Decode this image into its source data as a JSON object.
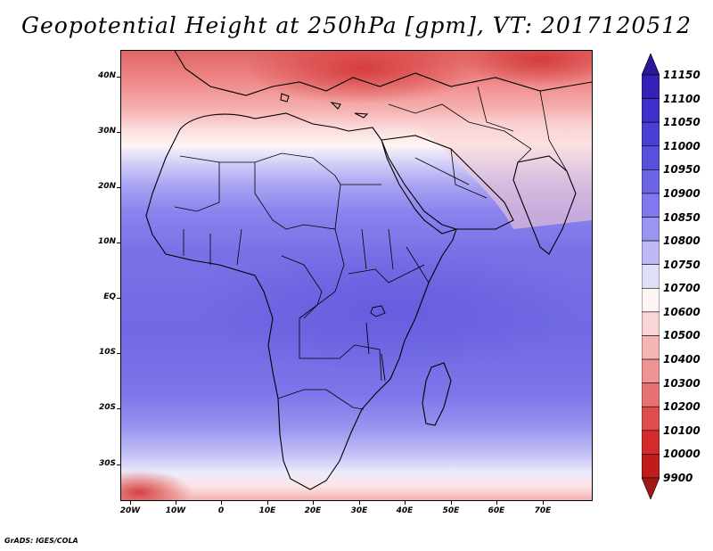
{
  "title": "Geopotential Height at 250hPa [gpm], VT: 2017120512",
  "footer": "GrADS: IGES/COLA",
  "lat_labels": [
    "40N",
    "30N",
    "20N",
    "10N",
    "EQ",
    "10S",
    "20S",
    "30S"
  ],
  "lon_labels": [
    "20W",
    "10W",
    "0",
    "10E",
    "20E",
    "30E",
    "40E",
    "50E",
    "60E",
    "70E"
  ],
  "colorbar": {
    "levels": [
      "11150",
      "11100",
      "11050",
      "11000",
      "10950",
      "10900",
      "10850",
      "10800",
      "10750",
      "10700",
      "10600",
      "10500",
      "10400",
      "10300",
      "10200",
      "10100",
      "10000",
      "9900"
    ],
    "colors": [
      "#2a1899",
      "#3322b4",
      "#3d2fc8",
      "#4a3fd4",
      "#5a50de",
      "#6c64e6",
      "#8078ec",
      "#9a95f0",
      "#bdbaf5",
      "#e0dffa",
      "#fff4f4",
      "#fbd6d6",
      "#f4b5b5",
      "#ee9494",
      "#e87272",
      "#e04d4d",
      "#d42c2c",
      "#c01c1c",
      "#a01818"
    ]
  },
  "map": {
    "region": "Africa",
    "lon_range": [
      -25,
      80
    ],
    "lat_range": [
      -37,
      45
    ]
  }
}
